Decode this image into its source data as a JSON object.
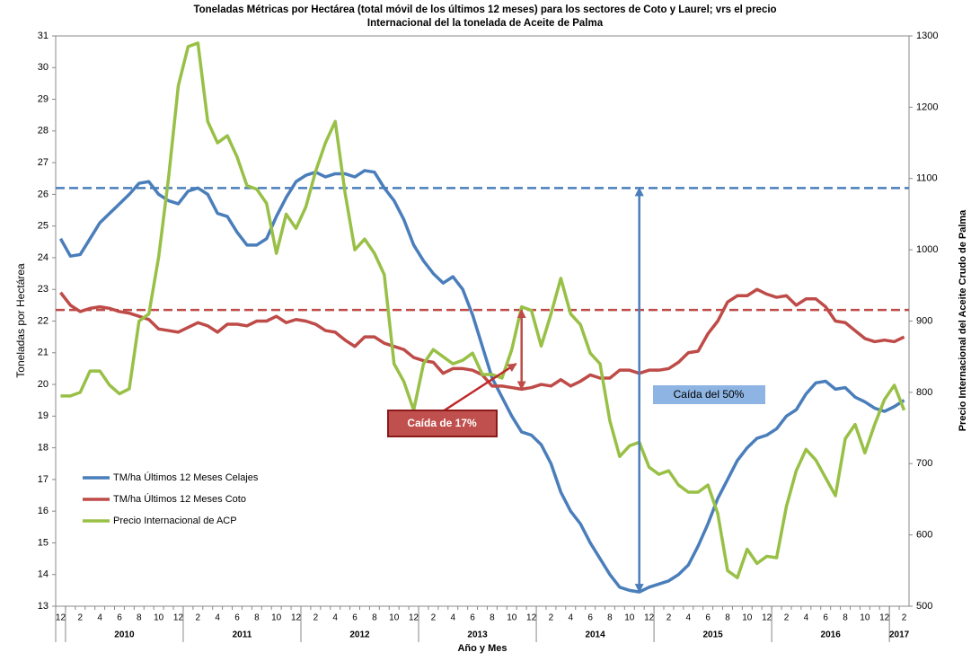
{
  "chart_data": {
    "type": "line",
    "title_lines": [
      "Toneladas Métricas por Hectárea (total móvil  de los últimos 12  meses) para los  sectores de Coto y  Laurel; vrs el precio",
      "Internacional del la tonelada de Aceite de Palma"
    ],
    "x_label": "Año y Mes",
    "y_label": "Toneladas por Hectárea",
    "y2_label": "Precio Internacional del Aceite Crudo de Palma",
    "categories": [
      "12",
      null,
      "2",
      null,
      "4",
      null,
      "6",
      null,
      "8",
      null,
      "10",
      null,
      "12",
      null,
      "2",
      null,
      "4",
      null,
      "6",
      null,
      "8",
      null,
      "10",
      null,
      "12",
      null,
      "2",
      null,
      "4",
      null,
      "6",
      null,
      "8",
      null,
      "10",
      null,
      "12",
      null,
      "2",
      null,
      "4",
      null,
      "6",
      null,
      "8",
      null,
      "10",
      null,
      "12",
      null,
      "2",
      null,
      "4",
      null,
      "6",
      null,
      "8",
      null,
      "10",
      null,
      "12",
      null,
      "2",
      null,
      "4",
      null,
      "6",
      null,
      "8",
      null,
      "10",
      null,
      "12",
      null,
      "2",
      null,
      "4",
      null,
      "6",
      null,
      "8",
      null,
      "10",
      null,
      "12",
      null,
      "2"
    ],
    "year_labels": [
      "2010",
      "2011",
      "2012",
      "2013",
      "2014",
      "2015",
      "2016",
      "2017"
    ],
    "ylim": [
      13,
      31
    ],
    "yticks": [
      13,
      14,
      15,
      16,
      17,
      18,
      19,
      20,
      21,
      22,
      23,
      24,
      25,
      26,
      27,
      28,
      29,
      30,
      31
    ],
    "y2lim": [
      500,
      1300
    ],
    "y2ticks": [
      500,
      600,
      700,
      800,
      900,
      1000,
      1100,
      1200,
      1300
    ],
    "legend": "lower left",
    "series": [
      {
        "name": "TM/ha Últimos 12 Meses Celajes",
        "color": "#4a7ebb",
        "values": [
          24.6,
          24.05,
          24.1,
          24.6,
          25.1,
          25.4,
          25.7,
          26.0,
          26.35,
          26.4,
          26.0,
          25.8,
          25.7,
          26.1,
          26.2,
          26.0,
          25.4,
          25.3,
          24.8,
          24.4,
          24.4,
          24.6,
          25.3,
          25.9,
          26.4,
          26.6,
          26.7,
          26.55,
          26.65,
          26.65,
          26.55,
          26.75,
          26.7,
          26.2,
          25.8,
          25.2,
          24.4,
          23.9,
          23.5,
          23.2,
          23.4,
          23.0,
          22.2,
          21.2,
          20.2,
          19.6,
          19.0,
          18.5,
          18.4,
          18.1,
          17.5,
          16.6,
          16.0,
          15.6,
          15.0,
          14.5,
          14.0,
          13.6,
          13.5,
          13.45,
          13.6,
          13.7,
          13.8,
          14.0,
          14.3,
          14.9,
          15.6,
          16.4,
          17.0,
          17.6,
          18.0,
          18.3,
          18.4,
          18.6,
          19.0,
          19.2,
          19.7,
          20.05,
          20.1,
          19.85,
          19.9,
          19.6,
          19.45,
          19.25,
          19.15,
          19.3,
          19.5
        ]
      },
      {
        "name": "TM/ha Últimos 12 Meses Coto",
        "color": "#be4b48",
        "values": [
          22.9,
          22.5,
          22.3,
          22.4,
          22.45,
          22.4,
          22.3,
          22.25,
          22.15,
          22.05,
          21.75,
          21.7,
          21.65,
          21.8,
          21.95,
          21.85,
          21.65,
          21.9,
          21.9,
          21.85,
          22.0,
          22.0,
          22.15,
          21.95,
          22.05,
          22.0,
          21.9,
          21.7,
          21.65,
          21.4,
          21.2,
          21.5,
          21.5,
          21.3,
          21.2,
          21.1,
          20.85,
          20.75,
          20.7,
          20.35,
          20.5,
          20.5,
          20.45,
          20.3,
          19.95,
          19.95,
          19.9,
          19.85,
          19.9,
          20.0,
          19.95,
          20.15,
          19.95,
          20.1,
          20.3,
          20.2,
          20.2,
          20.45,
          20.45,
          20.35,
          20.45,
          20.45,
          20.5,
          20.7,
          21.0,
          21.05,
          21.6,
          22.0,
          22.6,
          22.8,
          22.8,
          23.0,
          22.85,
          22.75,
          22.8,
          22.5,
          22.7,
          22.7,
          22.45,
          22.0,
          21.95,
          21.7,
          21.45,
          21.35,
          21.4,
          21.35,
          21.5
        ]
      },
      {
        "name": "Precio Internacional de ACP",
        "color": "#98c046",
        "axis": "y2",
        "values": [
          795,
          795,
          800,
          830,
          830,
          810,
          798,
          805,
          900,
          910,
          990,
          1100,
          1230,
          1285,
          1290,
          1180,
          1150,
          1160,
          1130,
          1090,
          1085,
          1065,
          995,
          1050,
          1030,
          1060,
          1110,
          1150,
          1180,
          1080,
          1000,
          1015,
          995,
          965,
          840,
          815,
          775,
          840,
          860,
          850,
          840,
          845,
          855,
          825,
          825,
          820,
          860,
          920,
          915,
          865,
          910,
          960,
          910,
          895,
          855,
          840,
          760,
          710,
          725,
          730,
          695,
          685,
          690,
          670,
          660,
          660,
          670,
          630,
          550,
          540,
          580,
          560,
          570,
          568,
          640,
          690,
          720,
          705,
          680,
          655,
          735,
          755,
          715,
          755,
          790,
          810,
          775
        ]
      }
    ],
    "reference_lines": [
      {
        "value": 26.2,
        "color": "#4a7ebb"
      },
      {
        "value": 22.35,
        "color": "#be4b48"
      }
    ],
    "annotations": [
      {
        "text": "Caída de 17%"
      },
      {
        "text": "Caída del 50%"
      }
    ]
  }
}
